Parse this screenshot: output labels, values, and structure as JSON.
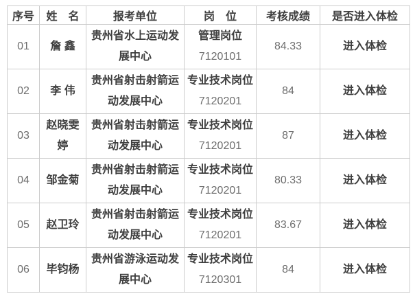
{
  "table": {
    "headers": {
      "no": "序号",
      "name": "姓　名",
      "unit": "报考单位",
      "post": "岗　位",
      "score": "考核成绩",
      "check": "是否进入体检"
    },
    "rows": [
      {
        "no": "01",
        "name": "詹 鑫",
        "unit": "贵州省水上运动发展中心",
        "post": "管理岗位",
        "code": "7120101",
        "score": "84.33",
        "check": "进入体检"
      },
      {
        "no": "02",
        "name": "李 伟",
        "unit": "贵州省射击射箭运动发展中心",
        "post": "专业技术岗位",
        "code": "7120201",
        "score": "84",
        "check": "进入体检"
      },
      {
        "no": "03",
        "name": "赵晓雯婷",
        "unit": "贵州省射击射箭运动发展中心",
        "post": "专业技术岗位",
        "code": "7120201",
        "score": "87",
        "check": "进入体检"
      },
      {
        "no": "04",
        "name": "邹金菊",
        "unit": "贵州省射击射箭运动发展中心",
        "post": "专业技术岗位",
        "code": "7120201",
        "score": "80.33",
        "check": "进入体检"
      },
      {
        "no": "05",
        "name": "赵卫玲",
        "unit": "贵州省射击射箭运动发展中心",
        "post": "专业技术岗位",
        "code": "7120201",
        "score": "83.67",
        "check": "进入体检"
      },
      {
        "no": "06",
        "name": "毕钧杨",
        "unit": "贵州省游泳运动发展中心",
        "post": "专业技术岗位",
        "code": "7120301",
        "score": "84",
        "check": "进入体检"
      }
    ]
  },
  "colors": {
    "border": "#cccccc",
    "text_dark": "#3f3f3f",
    "text_number": "#6e6e6e",
    "background": "#ffffff"
  }
}
